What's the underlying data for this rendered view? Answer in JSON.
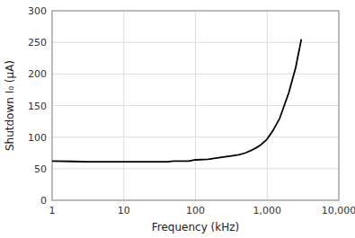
{
  "chart_data": {
    "type": "line",
    "xlabel": "Frequency (kHz)",
    "ylabel": "Shutdown I₀ (μA)",
    "log": "x",
    "grid": true,
    "color": "#000000",
    "xlim": [
      1,
      10000
    ],
    "ylim": [
      0,
      300
    ],
    "xticks": [
      1,
      10,
      100,
      {
        "value": 1000,
        "label": "1,000"
      },
      {
        "value": 10000,
        "label": "10,000"
      }
    ],
    "yticks": [
      0,
      50,
      100,
      150,
      200,
      250,
      300
    ],
    "x": [
      1,
      2,
      3,
      4,
      5,
      6,
      7,
      8,
      9,
      10,
      20,
      30,
      40,
      50,
      60,
      70,
      80,
      90,
      100,
      150,
      200,
      300,
      400,
      500,
      600,
      700,
      800,
      900,
      1000,
      1200,
      1500,
      2000,
      2500,
      3000
    ],
    "values": [
      62,
      61.5,
      61,
      61,
      61,
      61,
      61,
      61,
      61,
      61,
      61,
      61,
      61,
      62,
      62,
      62,
      62,
      63,
      64,
      65,
      67,
      70,
      72,
      75,
      79,
      83,
      87,
      92,
      97,
      110,
      130,
      170,
      210,
      255
    ]
  }
}
